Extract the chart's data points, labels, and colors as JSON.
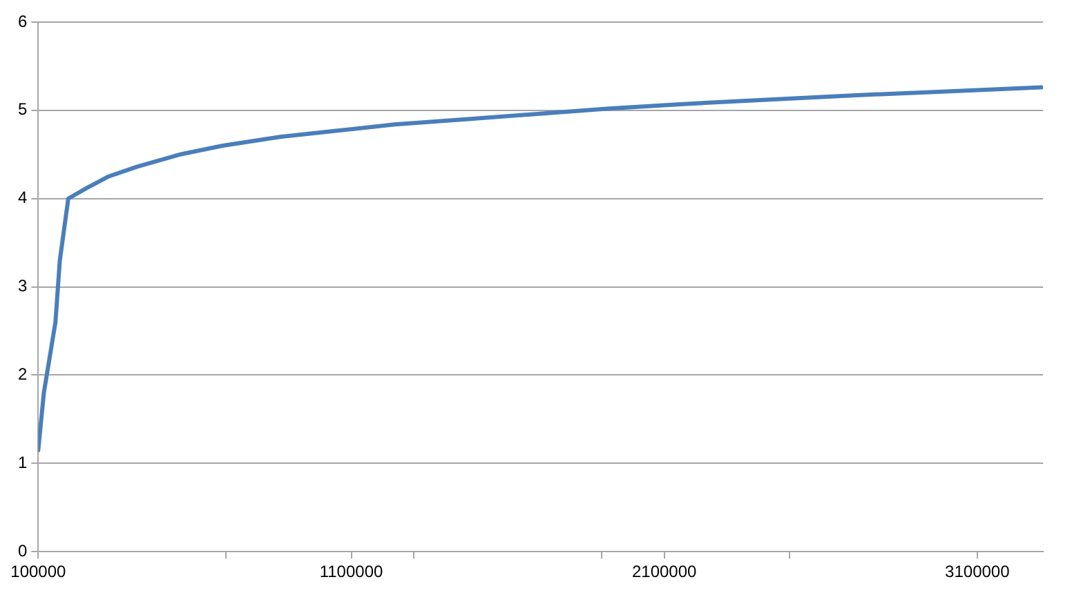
{
  "chart_data": {
    "type": "line",
    "x": [
      100000,
      118000,
      155000,
      169000,
      196000,
      255000,
      324000,
      415000,
      553000,
      690000,
      873000,
      1056000,
      1239000,
      1467000,
      1696000,
      1924000,
      2153000,
      2427000,
      2702000,
      2976000,
      3305000
    ],
    "series": [
      {
        "color": "#4a7ebb",
        "values": [
          1.15,
          1.8,
          2.6,
          3.3,
          4.0,
          4.12,
          4.25,
          4.36,
          4.5,
          4.6,
          4.7,
          4.77,
          4.84,
          4.9,
          4.96,
          5.02,
          5.07,
          5.12,
          5.17,
          5.21,
          5.26
        ]
      }
    ],
    "xlim": [
      100000,
      3310000
    ],
    "xticks": [
      100000,
      {
        "value": 700000,
        "label": null
      },
      1100000,
      {
        "value": 1300000,
        "label": null
      },
      {
        "value": 1900000,
        "label": null
      },
      2100000,
      {
        "value": 2500000,
        "label": null
      },
      3100000
    ],
    "ylim": [
      0,
      6
    ],
    "yticks": [
      0,
      1,
      2,
      3,
      4,
      5,
      6
    ],
    "grid": "y",
    "legend": false,
    "marker": "none",
    "line_style": "solid"
  }
}
